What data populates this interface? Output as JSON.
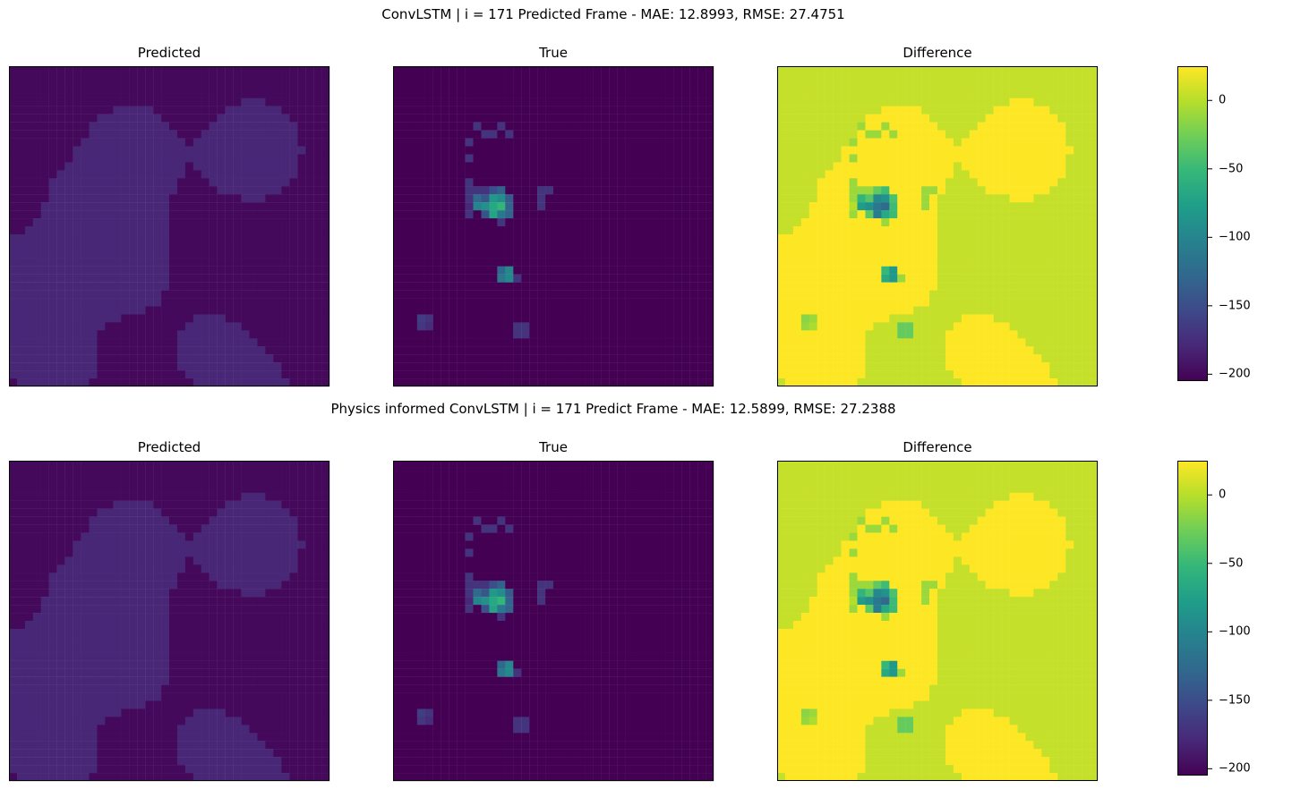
{
  "chart_data": [
    {
      "type": "heatmap",
      "title": "ConvLSTM | i = 171 Predicted Frame - MAE: 12.8993, RMSE: 27.4751",
      "panels": [
        {
          "title": "Predicted",
          "map": "predicted",
          "vmin": -205,
          "vmax": 25
        },
        {
          "title": "True",
          "map": "true",
          "vmin": -205,
          "vmax": 25
        },
        {
          "title": "Difference",
          "map": "difference",
          "vmin": -205,
          "vmax": 25
        }
      ],
      "colorbar": {
        "colormap": "viridis",
        "min": -205,
        "max": 25,
        "ticks": [
          0,
          -50,
          -100,
          -150,
          -200
        ],
        "tick_labels": [
          "0",
          "−50",
          "−100",
          "−150",
          "−200"
        ]
      },
      "grid": false
    },
    {
      "type": "heatmap",
      "title": "Physics informed ConvLSTM | i = 171 Predict Frame - MAE: 12.5899, RMSE: 27.2388",
      "panels": [
        {
          "title": "Predicted",
          "map": "predicted",
          "vmin": -205,
          "vmax": 25
        },
        {
          "title": "True",
          "map": "true",
          "vmin": -205,
          "vmax": 25
        },
        {
          "title": "Difference",
          "map": "difference",
          "vmin": -205,
          "vmax": 25
        }
      ],
      "colorbar": {
        "colormap": "viridis",
        "min": -205,
        "max": 25,
        "ticks": [
          0,
          -50,
          -100,
          -150,
          -200
        ],
        "tick_labels": [
          "0",
          "−50",
          "−100",
          "−150",
          "−200"
        ]
      },
      "grid": false
    }
  ],
  "colors": {
    "viridis_stops": [
      "#440154",
      "#482878",
      "#3e4989",
      "#31688e",
      "#26828e",
      "#1f9e89",
      "#35b779",
      "#6ece58",
      "#b5de2b",
      "#fde725"
    ],
    "frame": "#000000"
  }
}
